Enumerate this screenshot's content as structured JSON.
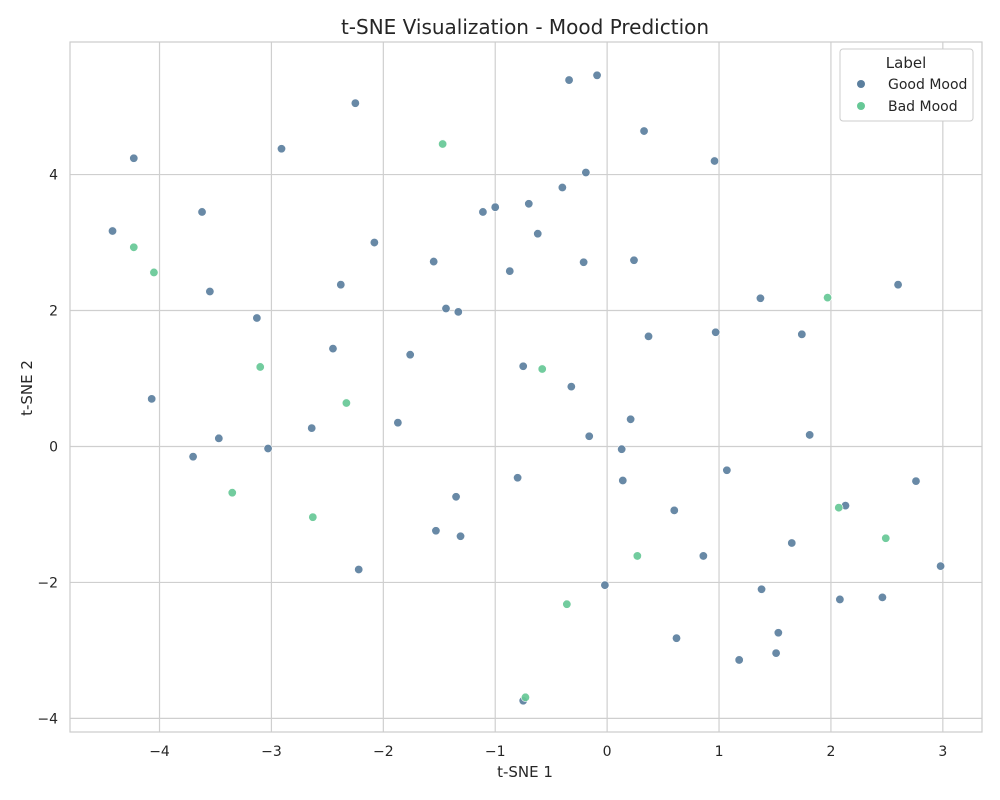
{
  "chart_data": {
    "type": "scatter",
    "title": "t-SNE Visualization - Mood Prediction",
    "xlabel": "t-SNE 1",
    "ylabel": "t-SNE 2",
    "xlim": [
      -4.8,
      3.35
    ],
    "ylim": [
      -4.2,
      5.95
    ],
    "xticks": [
      -4,
      -3,
      -2,
      -1,
      0,
      1,
      2,
      3
    ],
    "yticks": [
      -4,
      -2,
      0,
      2,
      4
    ],
    "tick_labels_x": [
      "−4",
      "−3",
      "−2",
      "−1",
      "0",
      "1",
      "2",
      "3"
    ],
    "tick_labels_y": [
      "−4",
      "−2",
      "0",
      "2",
      "4"
    ],
    "grid": true,
    "legend": {
      "title": "Label",
      "position": "top-right"
    },
    "series": [
      {
        "name": "Good Mood",
        "color": "#5b7f9e",
        "points": [
          [
            -4.42,
            3.17
          ],
          [
            -4.23,
            4.24
          ],
          [
            -4.07,
            0.7
          ],
          [
            -3.7,
            -0.15
          ],
          [
            -3.62,
            3.45
          ],
          [
            -3.47,
            0.12
          ],
          [
            -3.55,
            2.28
          ],
          [
            -3.13,
            1.89
          ],
          [
            -3.03,
            -0.03
          ],
          [
            -2.91,
            4.38
          ],
          [
            -2.64,
            0.27
          ],
          [
            -2.45,
            1.44
          ],
          [
            -2.38,
            2.38
          ],
          [
            -2.25,
            5.05
          ],
          [
            -2.22,
            -1.81
          ],
          [
            -2.08,
            3.0
          ],
          [
            -1.87,
            0.35
          ],
          [
            -1.76,
            1.35
          ],
          [
            -1.55,
            2.72
          ],
          [
            -1.53,
            -1.24
          ],
          [
            -1.44,
            2.03
          ],
          [
            -1.35,
            -0.74
          ],
          [
            -1.33,
            1.98
          ],
          [
            -1.31,
            -1.32
          ],
          [
            -1.11,
            3.45
          ],
          [
            -1.0,
            3.52
          ],
          [
            -0.87,
            2.58
          ],
          [
            -0.8,
            -0.46
          ],
          [
            -0.75,
            1.18
          ],
          [
            -0.75,
            -3.74
          ],
          [
            -0.7,
            3.57
          ],
          [
            -0.62,
            3.13
          ],
          [
            -0.4,
            3.81
          ],
          [
            -0.34,
            5.39
          ],
          [
            -0.32,
            0.88
          ],
          [
            -0.21,
            2.71
          ],
          [
            -0.19,
            4.03
          ],
          [
            -0.16,
            0.15
          ],
          [
            -0.09,
            5.46
          ],
          [
            -0.02,
            -2.04
          ],
          [
            0.13,
            -0.04
          ],
          [
            0.14,
            -0.5
          ],
          [
            0.21,
            0.4
          ],
          [
            0.24,
            2.74
          ],
          [
            0.33,
            4.64
          ],
          [
            0.37,
            1.62
          ],
          [
            0.6,
            -0.94
          ],
          [
            0.62,
            -2.82
          ],
          [
            0.86,
            -1.61
          ],
          [
            0.96,
            4.2
          ],
          [
            0.97,
            1.68
          ],
          [
            1.07,
            -0.35
          ],
          [
            1.18,
            -3.14
          ],
          [
            1.37,
            2.18
          ],
          [
            1.38,
            -2.1
          ],
          [
            1.51,
            -3.04
          ],
          [
            1.53,
            -2.74
          ],
          [
            1.65,
            -1.42
          ],
          [
            1.74,
            1.65
          ],
          [
            1.81,
            0.17
          ],
          [
            2.08,
            -2.25
          ],
          [
            2.13,
            -0.87
          ],
          [
            2.46,
            -2.22
          ],
          [
            2.6,
            2.38
          ],
          [
            2.76,
            -0.51
          ],
          [
            2.98,
            -1.76
          ]
        ]
      },
      {
        "name": "Bad Mood",
        "color": "#66c896",
        "points": [
          [
            -4.23,
            2.93
          ],
          [
            -4.05,
            2.56
          ],
          [
            -3.35,
            -0.68
          ],
          [
            -3.1,
            1.17
          ],
          [
            -2.63,
            -1.04
          ],
          [
            -2.33,
            0.64
          ],
          [
            -1.47,
            4.45
          ],
          [
            -0.73,
            -3.69
          ],
          [
            -0.58,
            1.14
          ],
          [
            -0.36,
            -2.32
          ],
          [
            0.27,
            -1.61
          ],
          [
            1.97,
            2.19
          ],
          [
            2.07,
            -0.9
          ],
          [
            2.49,
            -1.35
          ]
        ]
      }
    ]
  }
}
